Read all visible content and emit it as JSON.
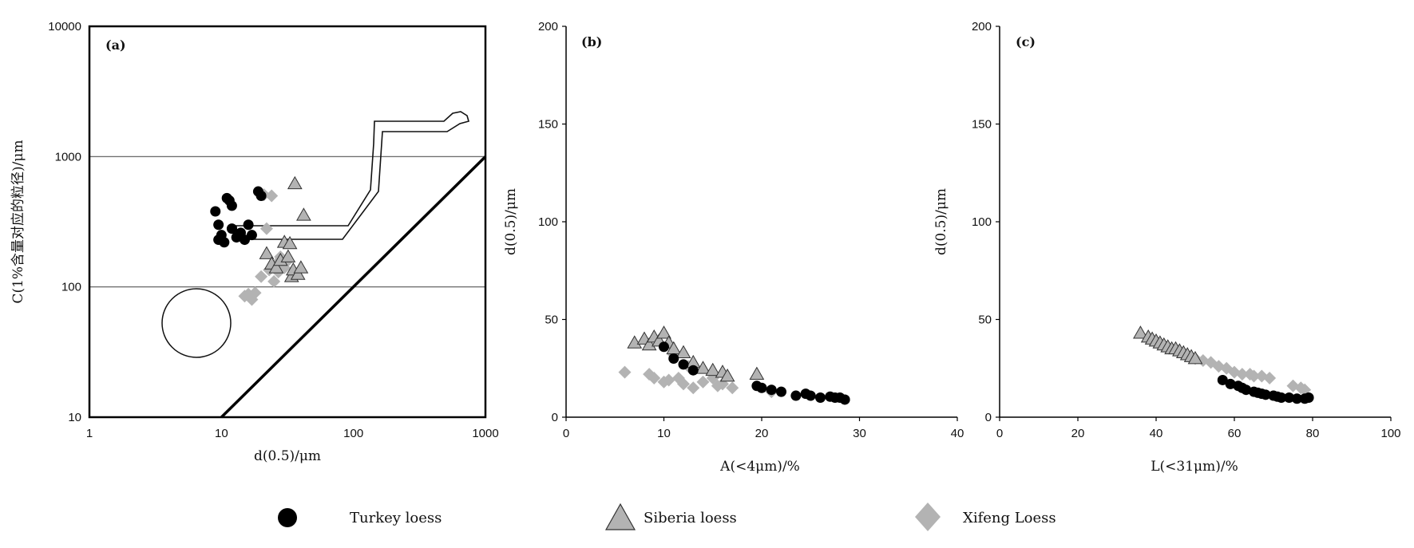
{
  "legend": [
    {
      "label": "Turkey loess",
      "marker": "circle",
      "color": "#000000"
    },
    {
      "label": "Siberia loess",
      "marker": "triangle",
      "color": "#b3b3b3"
    },
    {
      "label": "Xifeng Loess",
      "marker": "diamond",
      "color": "#b3b3b3"
    }
  ],
  "chart_data": [
    {
      "type": "scatter",
      "panel_label": "(a)",
      "xlabel": "d(0.5)/μm",
      "ylabel": "C(1%含量对应的粒径)/μm",
      "xscale": "log",
      "yscale": "log",
      "xlim": [
        1,
        1000
      ],
      "ylim": [
        10,
        10000
      ],
      "xticks": [
        "1",
        "10",
        "100",
        "1000"
      ],
      "yticks": [
        "10",
        "100",
        "1000",
        "10000"
      ],
      "grid": "horizontal lines at 100 and 1000",
      "reference_line": {
        "description": "C = d(0.5) diagonal",
        "points": [
          [
            10,
            10
          ],
          [
            1000,
            1000
          ]
        ]
      },
      "series": [
        {
          "name": "Turkey loess",
          "points": [
            [
              9,
              380
            ],
            [
              9.5,
              300
            ],
            [
              9.5,
              230
            ],
            [
              10,
              250
            ],
            [
              10.5,
              220
            ],
            [
              11,
              480
            ],
            [
              11.5,
              460
            ],
            [
              12,
              420
            ],
            [
              12,
              280
            ],
            [
              13,
              240
            ],
            [
              14,
              260
            ],
            [
              15,
              230
            ],
            [
              16,
              300
            ],
            [
              17,
              250
            ],
            [
              19,
              540
            ],
            [
              20,
              500
            ]
          ]
        },
        {
          "name": "Siberia loess",
          "points": [
            [
              22,
              180
            ],
            [
              24,
              150
            ],
            [
              26,
              140
            ],
            [
              28,
              160
            ],
            [
              30,
              220
            ],
            [
              32,
              170
            ],
            [
              33,
              215
            ],
            [
              34,
              120
            ],
            [
              35,
              135
            ],
            [
              36,
              620
            ],
            [
              38,
              125
            ],
            [
              40,
              140
            ],
            [
              42,
              355
            ]
          ]
        },
        {
          "name": "Xifeng Loess",
          "points": [
            [
              15,
              85
            ],
            [
              16,
              88
            ],
            [
              17,
              80
            ],
            [
              18,
              90
            ],
            [
              20,
              120
            ],
            [
              21,
              510
            ],
            [
              22,
              280
            ],
            [
              23,
              135
            ],
            [
              24,
              500
            ],
            [
              25,
              110
            ],
            [
              26,
              150
            ],
            [
              27,
              130
            ],
            [
              28,
              170
            ],
            [
              30,
              140
            ],
            [
              32,
              160
            ]
          ]
        }
      ]
    },
    {
      "type": "scatter",
      "panel_label": "(b)",
      "xlabel": "A(<4μm)/%",
      "ylabel": "d(0.5)/μm",
      "xlim": [
        0,
        40
      ],
      "ylim": [
        0,
        200
      ],
      "xticks": [
        "0",
        "10",
        "20",
        "30",
        "40"
      ],
      "yticks": [
        "0",
        "50",
        "100",
        "150",
        "200"
      ],
      "series": [
        {
          "name": "Turkey loess",
          "points": [
            [
              10,
              36
            ],
            [
              11,
              30
            ],
            [
              12,
              27
            ],
            [
              13,
              24
            ],
            [
              19.5,
              16
            ],
            [
              20,
              15
            ],
            [
              21,
              14
            ],
            [
              22,
              13
            ],
            [
              23.5,
              11
            ],
            [
              24.5,
              12
            ],
            [
              25,
              11
            ],
            [
              26,
              10
            ],
            [
              27,
              10.5
            ],
            [
              27.5,
              10
            ],
            [
              28,
              10
            ],
            [
              28.5,
              9
            ]
          ]
        },
        {
          "name": "Siberia loess",
          "points": [
            [
              7,
              38
            ],
            [
              8,
              40
            ],
            [
              8.5,
              37
            ],
            [
              9,
              41
            ],
            [
              9.5,
              39
            ],
            [
              10,
              43
            ],
            [
              10.5,
              38
            ],
            [
              11,
              35
            ],
            [
              12,
              33
            ],
            [
              13,
              28
            ],
            [
              14,
              25
            ],
            [
              15,
              24
            ],
            [
              16,
              23
            ],
            [
              16.5,
              21
            ],
            [
              19.5,
              22
            ]
          ]
        },
        {
          "name": "Xifeng Loess",
          "points": [
            [
              6,
              23
            ],
            [
              8.5,
              22
            ],
            [
              9,
              20
            ],
            [
              10,
              18
            ],
            [
              10.5,
              19
            ],
            [
              11,
              32
            ],
            [
              11.5,
              20
            ],
            [
              12,
              17
            ],
            [
              12.5,
              26
            ],
            [
              13,
              15
            ],
            [
              14,
              18
            ],
            [
              15,
              20
            ],
            [
              15.5,
              16
            ],
            [
              16,
              17
            ],
            [
              17,
              15
            ],
            [
              21,
              13
            ]
          ]
        }
      ]
    },
    {
      "type": "scatter",
      "panel_label": "(c)",
      "xlabel": "L(<31μm)/%",
      "ylabel": "d(0.5)/μm",
      "xlim": [
        0,
        100
      ],
      "ylim": [
        0,
        200
      ],
      "xticks": [
        "0",
        "20",
        "40",
        "60",
        "80",
        "100"
      ],
      "yticks": [
        "0",
        "50",
        "100",
        "150",
        "200"
      ],
      "series": [
        {
          "name": "Turkey loess",
          "points": [
            [
              57,
              19
            ],
            [
              59,
              17
            ],
            [
              61,
              16
            ],
            [
              62,
              15
            ],
            [
              63,
              14
            ],
            [
              65,
              13
            ],
            [
              66,
              12.5
            ],
            [
              67,
              12
            ],
            [
              68,
              11.5
            ],
            [
              70,
              11
            ],
            [
              71,
              10.5
            ],
            [
              72,
              10
            ],
            [
              74,
              10
            ],
            [
              76,
              9.5
            ],
            [
              78,
              9.5
            ],
            [
              79,
              10
            ]
          ]
        },
        {
          "name": "Siberia loess",
          "points": [
            [
              36,
              43
            ],
            [
              38,
              41
            ],
            [
              39,
              40
            ],
            [
              40,
              39
            ],
            [
              41,
              38
            ],
            [
              42,
              37
            ],
            [
              43,
              36
            ],
            [
              44,
              35
            ],
            [
              45,
              35
            ],
            [
              46,
              34
            ],
            [
              47,
              33
            ],
            [
              48,
              32
            ],
            [
              49,
              31
            ],
            [
              50,
              30
            ]
          ]
        },
        {
          "name": "Xifeng Loess",
          "points": [
            [
              50,
              30
            ],
            [
              52,
              29
            ],
            [
              54,
              28
            ],
            [
              56,
              26
            ],
            [
              58,
              25
            ],
            [
              60,
              23
            ],
            [
              62,
              22
            ],
            [
              64,
              22
            ],
            [
              65,
              21
            ],
            [
              67,
              21
            ],
            [
              69,
              20
            ],
            [
              75,
              16
            ],
            [
              77,
              15
            ],
            [
              78,
              14
            ]
          ]
        }
      ]
    }
  ]
}
